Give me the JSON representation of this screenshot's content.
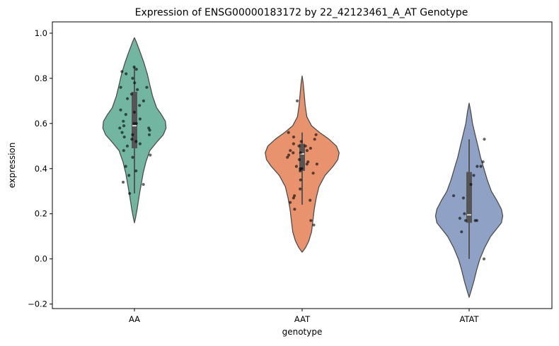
{
  "chart_data": {
    "type": "violin",
    "title": "Expression of ENSG00000183172 by 22_42123461_A_AT Genotype",
    "xlabel": "genotype",
    "ylabel": "expression",
    "ylim": [
      -0.22,
      1.05
    ],
    "yticks": [
      -0.2,
      0.0,
      0.2,
      0.4,
      0.6,
      0.8,
      1.0
    ],
    "ytick_labels": [
      "−0.2",
      "0.0",
      "0.2",
      "0.4",
      "0.6",
      "0.8",
      "1.0"
    ],
    "categories": [
      "AA",
      "AAT",
      "ATAT"
    ],
    "grid": false,
    "legend": "none",
    "series": [
      {
        "category": "AA",
        "color": "#72b6a1",
        "box": {
          "whisker_low": 0.29,
          "q1": 0.49,
          "median": 0.59,
          "q3": 0.74,
          "whisker_high": 0.85
        },
        "density": [
          [
            0.16,
            0
          ],
          [
            0.18,
            0.015
          ],
          [
            0.22,
            0.04
          ],
          [
            0.28,
            0.07
          ],
          [
            0.33,
            0.1
          ],
          [
            0.38,
            0.13
          ],
          [
            0.43,
            0.17
          ],
          [
            0.48,
            0.23
          ],
          [
            0.52,
            0.34
          ],
          [
            0.55,
            0.43
          ],
          [
            0.58,
            0.47
          ],
          [
            0.61,
            0.46
          ],
          [
            0.64,
            0.4
          ],
          [
            0.67,
            0.33
          ],
          [
            0.72,
            0.27
          ],
          [
            0.77,
            0.23
          ],
          [
            0.82,
            0.19
          ],
          [
            0.87,
            0.14
          ],
          [
            0.92,
            0.08
          ],
          [
            0.96,
            0.03
          ],
          [
            0.98,
            0
          ]
        ],
        "points": [
          0.85,
          0.84,
          0.83,
          0.82,
          0.8,
          0.78,
          0.76,
          0.76,
          0.75,
          0.73,
          0.71,
          0.7,
          0.68,
          0.66,
          0.65,
          0.64,
          0.62,
          0.61,
          0.6,
          0.6,
          0.59,
          0.58,
          0.58,
          0.57,
          0.56,
          0.55,
          0.55,
          0.54,
          0.53,
          0.52,
          0.51,
          0.5,
          0.48,
          0.46,
          0.45,
          0.41,
          0.39,
          0.37,
          0.34,
          0.33,
          0.29
        ]
      },
      {
        "category": "AAT",
        "color": "#e9936e",
        "box": {
          "whisker_low": 0.24,
          "q1": 0.39,
          "median": 0.465,
          "q3": 0.51,
          "whisker_high": 0.56
        },
        "density": [
          [
            0.03,
            0
          ],
          [
            0.05,
            0.05
          ],
          [
            0.08,
            0.1
          ],
          [
            0.12,
            0.14
          ],
          [
            0.17,
            0.16
          ],
          [
            0.22,
            0.18
          ],
          [
            0.27,
            0.21
          ],
          [
            0.32,
            0.25
          ],
          [
            0.37,
            0.34
          ],
          [
            0.41,
            0.46
          ],
          [
            0.44,
            0.53
          ],
          [
            0.47,
            0.55
          ],
          [
            0.5,
            0.51
          ],
          [
            0.53,
            0.4
          ],
          [
            0.56,
            0.26
          ],
          [
            0.59,
            0.14
          ],
          [
            0.63,
            0.07
          ],
          [
            0.68,
            0.045
          ],
          [
            0.73,
            0.03
          ],
          [
            0.78,
            0.015
          ],
          [
            0.81,
            0
          ]
        ],
        "points": [
          0.7,
          0.56,
          0.55,
          0.54,
          0.53,
          0.52,
          0.51,
          0.5,
          0.5,
          0.49,
          0.48,
          0.48,
          0.47,
          0.47,
          0.46,
          0.45,
          0.44,
          0.43,
          0.42,
          0.42,
          0.41,
          0.4,
          0.4,
          0.39,
          0.38,
          0.35,
          0.31,
          0.28,
          0.27,
          0.26,
          0.25,
          0.22,
          0.17,
          0.15
        ]
      },
      {
        "category": "ATAT",
        "color": "#8fa2c6",
        "box": {
          "whisker_low": 0.0,
          "q1": 0.16,
          "median": 0.195,
          "q3": 0.385,
          "whisker_high": 0.53
        },
        "density": [
          [
            -0.17,
            0
          ],
          [
            -0.14,
            0.03
          ],
          [
            -0.1,
            0.07
          ],
          [
            -0.05,
            0.11
          ],
          [
            0.0,
            0.16
          ],
          [
            0.05,
            0.23
          ],
          [
            0.1,
            0.32
          ],
          [
            0.13,
            0.4
          ],
          [
            0.16,
            0.48
          ],
          [
            0.19,
            0.5
          ],
          [
            0.22,
            0.48
          ],
          [
            0.26,
            0.41
          ],
          [
            0.3,
            0.33
          ],
          [
            0.35,
            0.27
          ],
          [
            0.4,
            0.22
          ],
          [
            0.45,
            0.17
          ],
          [
            0.5,
            0.13
          ],
          [
            0.55,
            0.09
          ],
          [
            0.6,
            0.05
          ],
          [
            0.65,
            0.025
          ],
          [
            0.69,
            0
          ]
        ],
        "points": [
          0.53,
          0.43,
          0.41,
          0.41,
          0.37,
          0.33,
          0.28,
          0.27,
          0.2,
          0.18,
          0.17,
          0.17,
          0.17,
          0.12,
          0.0
        ]
      }
    ]
  }
}
